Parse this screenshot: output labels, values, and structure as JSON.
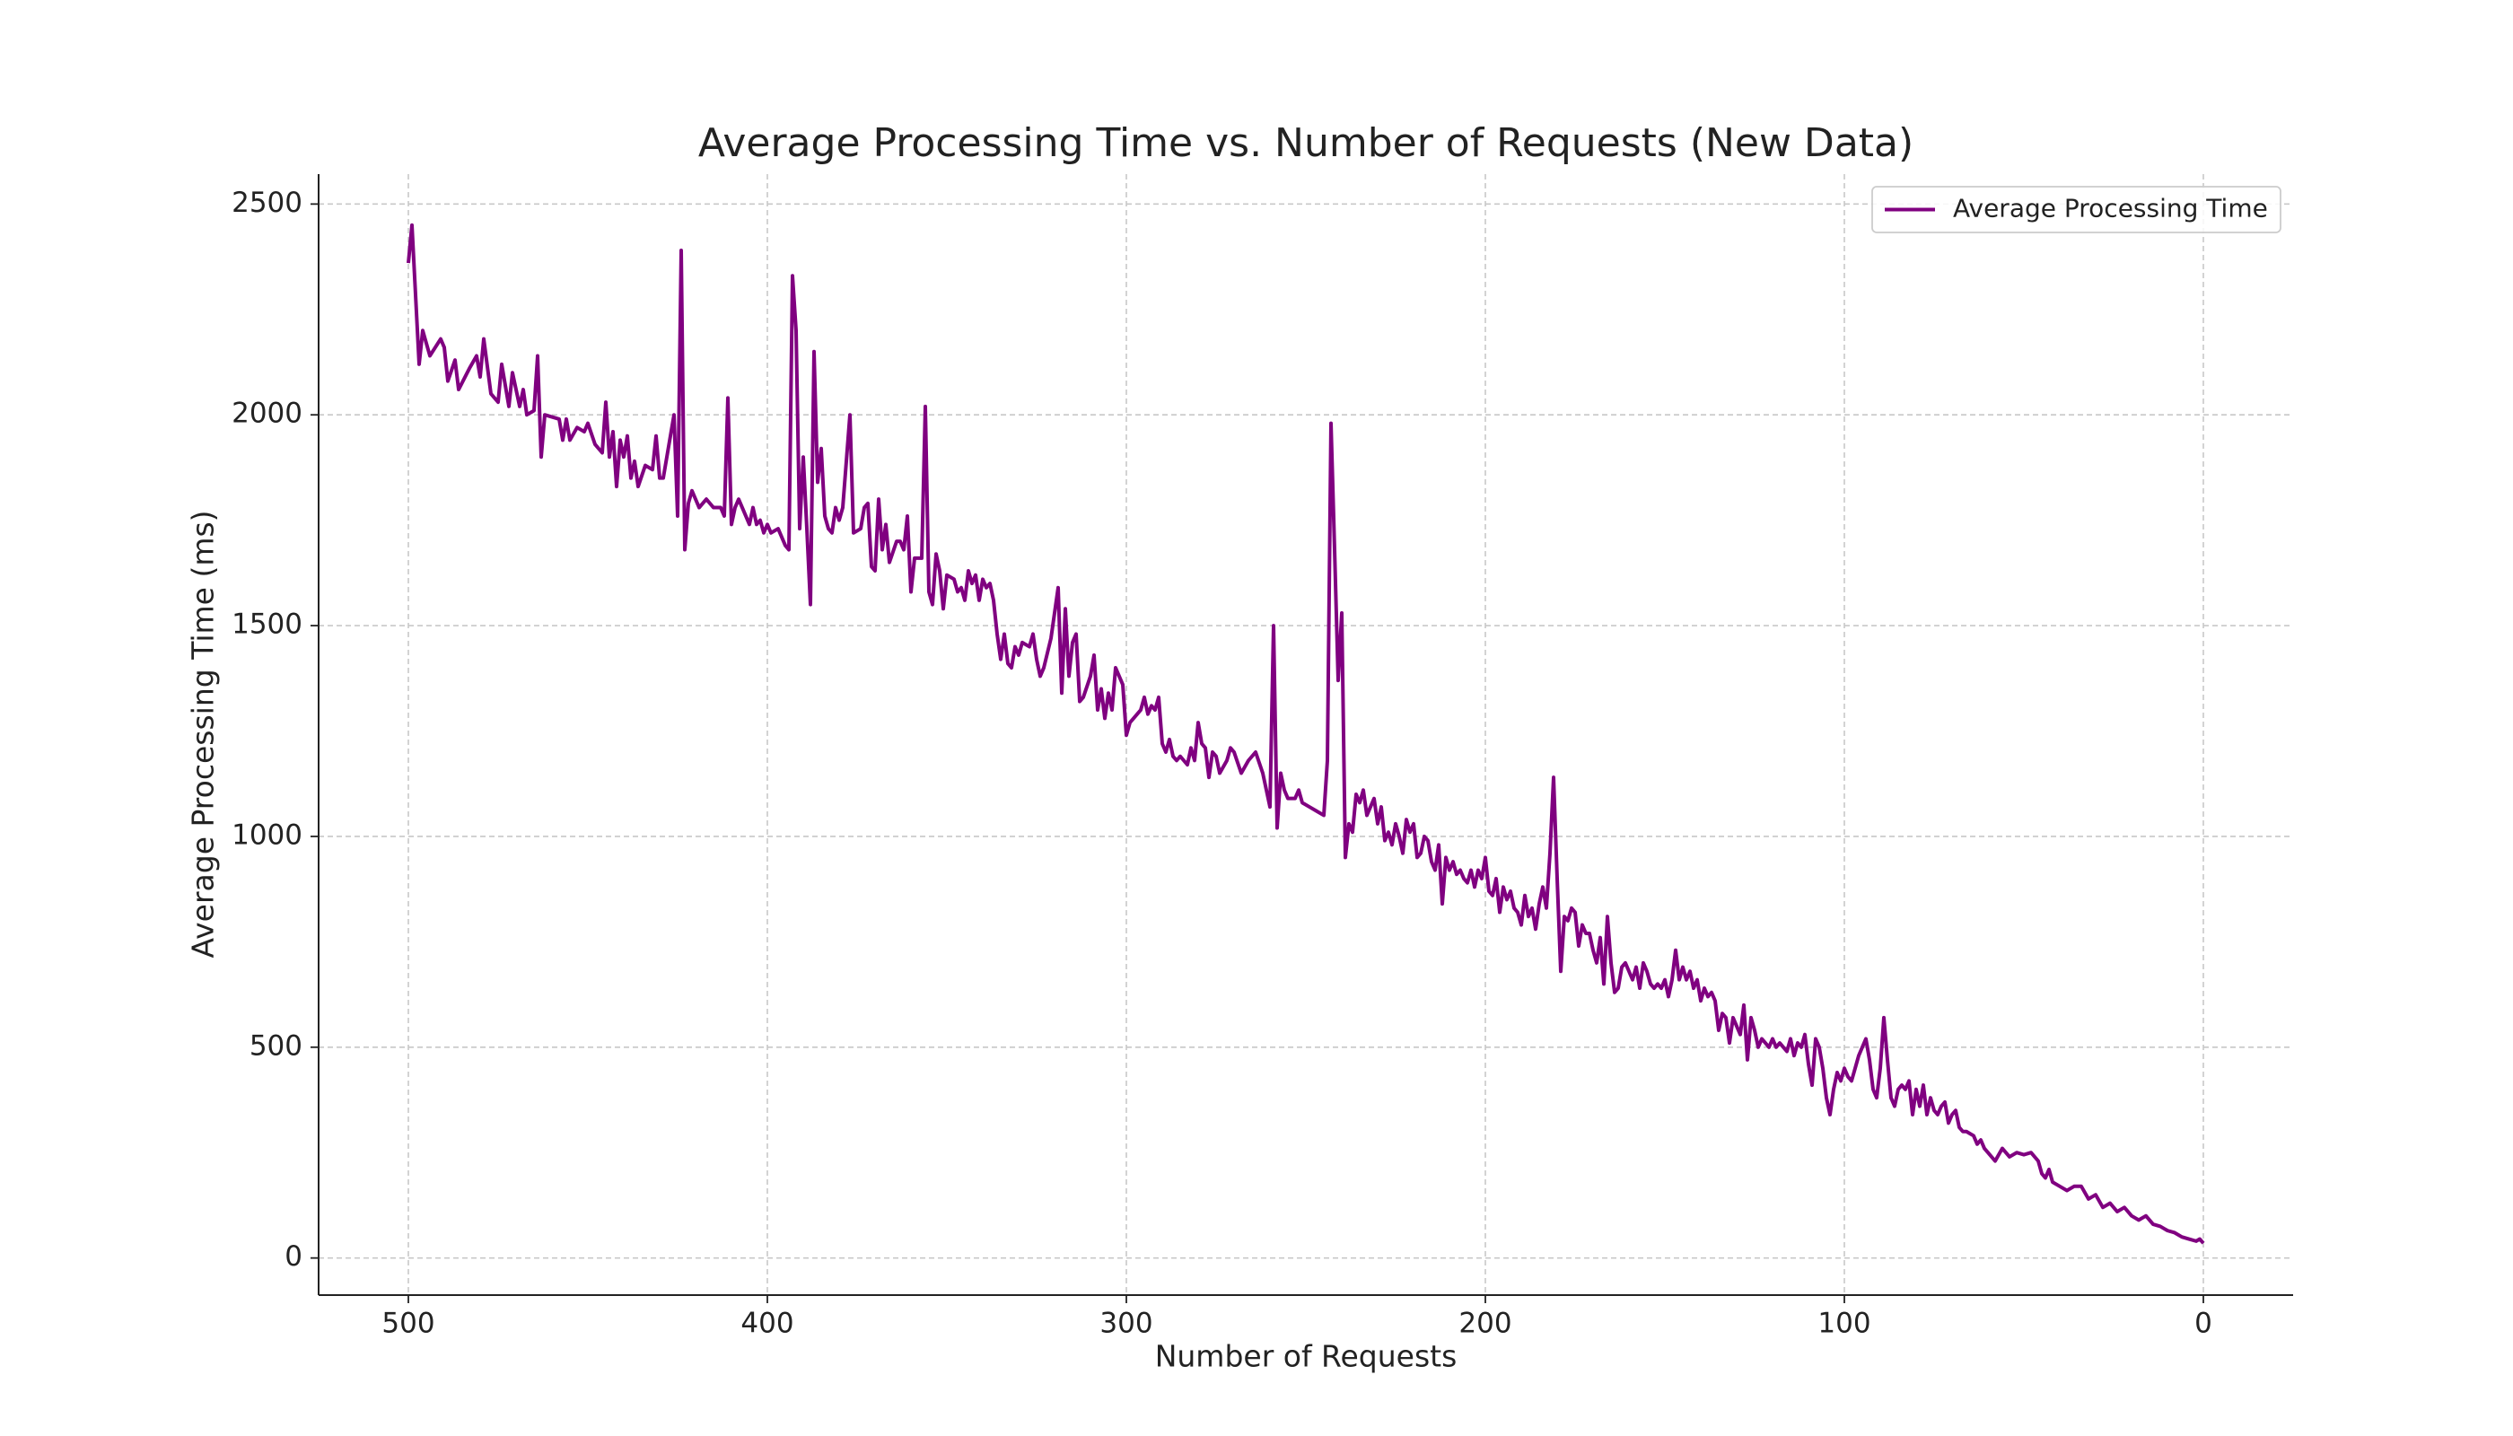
{
  "chart_data": {
    "type": "line",
    "title": "Average Processing Time vs. Number of Requests (New Data)",
    "x_label": "Number of Requests",
    "y_label": "Average Processing Time (ms)",
    "xlim": [
      525,
      -25
    ],
    "xticks": [
      500,
      400,
      300,
      200,
      100,
      0
    ],
    "ylim": [
      -88,
      2571
    ],
    "yticks": [
      0,
      500,
      1000,
      1500,
      2000,
      2500
    ],
    "grid": true,
    "legend": "upper right",
    "x": [
      500,
      499,
      497,
      496,
      494,
      491,
      490,
      489,
      487,
      486,
      483,
      481,
      480,
      479,
      477,
      475,
      474,
      472,
      471,
      469,
      468,
      467,
      465,
      464,
      463,
      462,
      458,
      457,
      456,
      455,
      453,
      451,
      450,
      448,
      446,
      445,
      444,
      443,
      442,
      441,
      440,
      439,
      438,
      437,
      436,
      434,
      432,
      431,
      430,
      429,
      426,
      425,
      424,
      423,
      422,
      421,
      420,
      419,
      417,
      415,
      413,
      412,
      411,
      410,
      409,
      408,
      406,
      405,
      404,
      403,
      402,
      401,
      400,
      399,
      397,
      395,
      394,
      393,
      392,
      391,
      390,
      389,
      388,
      387,
      386,
      385,
      384,
      383,
      382,
      381,
      380,
      379,
      377,
      376,
      374,
      373,
      372,
      371,
      370,
      369,
      368,
      367,
      366,
      364,
      363,
      362,
      361,
      360,
      359,
      357,
      356,
      355,
      354,
      353,
      352,
      351,
      350,
      348,
      347,
      346,
      345,
      344,
      343,
      342,
      341,
      340,
      339,
      338,
      337,
      336,
      335,
      334,
      333,
      332,
      331,
      330,
      329,
      327,
      326,
      325,
      324,
      323,
      321,
      319,
      318,
      317,
      316,
      315,
      314,
      313,
      312,
      310,
      309,
      308,
      307,
      306,
      305,
      304,
      303,
      302,
      301,
      300,
      299,
      298,
      296,
      295,
      294,
      293,
      292,
      291,
      290,
      289,
      288,
      287,
      286,
      285,
      284,
      283,
      282,
      281,
      280,
      279,
      278,
      277,
      276,
      275,
      274,
      272,
      271,
      270,
      268,
      266,
      264,
      262,
      260,
      259,
      258,
      257,
      256,
      255,
      253,
      252,
      251,
      249,
      247,
      245,
      244,
      243,
      242,
      241,
      240,
      239,
      238,
      237,
      236,
      235,
      234,
      233,
      232,
      231,
      230,
      229,
      228,
      227,
      226,
      225,
      224,
      223,
      222,
      221,
      220,
      219,
      218,
      217,
      216,
      215,
      214,
      213,
      212,
      211,
      210,
      209,
      208,
      207,
      206,
      205,
      204,
      203,
      202,
      201,
      200,
      199,
      198,
      197,
      196,
      195,
      194,
      193,
      192,
      191,
      190,
      189,
      188,
      187,
      186,
      185,
      184,
      183,
      182,
      181,
      180,
      179,
      178,
      177,
      176,
      175,
      174,
      173,
      172,
      171,
      170,
      169,
      168,
      167,
      166,
      165,
      164,
      163,
      162,
      161,
      160,
      159,
      158,
      157,
      156,
      155,
      154,
      153,
      152,
      151,
      150,
      149,
      148,
      147,
      146,
      145,
      144,
      143,
      142,
      141,
      140,
      139,
      138,
      137,
      136,
      135,
      134,
      133,
      132,
      131,
      130,
      129,
      128,
      127,
      126,
      125,
      124,
      123,
      122,
      121,
      120,
      119,
      118,
      117,
      116,
      115,
      114,
      113,
      112,
      111,
      110,
      109,
      108,
      107,
      106,
      105,
      104,
      103,
      102,
      101,
      100,
      99,
      98,
      97,
      96,
      95,
      94,
      93,
      92,
      91,
      90,
      89,
      88,
      87,
      86,
      85,
      84,
      83,
      82,
      81,
      80,
      79,
      78,
      77,
      76,
      75,
      74,
      73,
      72,
      71,
      70,
      69,
      68,
      67,
      66,
      65,
      64,
      63,
      62,
      61,
      60,
      58,
      56,
      54,
      52,
      50,
      48,
      46,
      45,
      44,
      43,
      42,
      40,
      38,
      36,
      34,
      32,
      30,
      28,
      26,
      24,
      22,
      20,
      18,
      16,
      14,
      12,
      10,
      8,
      6,
      4,
      2,
      1,
      0
    ],
    "series": [
      {
        "name": "Average Processing Time",
        "color": "#800080",
        "values": [
          2360,
          2450,
          2120,
          2200,
          2140,
          2180,
          2160,
          2080,
          2130,
          2060,
          2110,
          2140,
          2090,
          2180,
          2050,
          2030,
          2120,
          2020,
          2100,
          2020,
          2060,
          2000,
          2010,
          2140,
          1900,
          2000,
          1990,
          1940,
          1990,
          1940,
          1970,
          1960,
          1980,
          1930,
          1910,
          2030,
          1900,
          1960,
          1830,
          1940,
          1900,
          1950,
          1850,
          1890,
          1830,
          1880,
          1870,
          1950,
          1850,
          1850,
          2000,
          1760,
          2390,
          1680,
          1790,
          1820,
          1800,
          1780,
          1800,
          1780,
          1780,
          1760,
          2040,
          1740,
          1780,
          1800,
          1760,
          1740,
          1780,
          1740,
          1750,
          1720,
          1740,
          1720,
          1730,
          1690,
          1680,
          2330,
          2200,
          1730,
          1900,
          1730,
          1550,
          2150,
          1840,
          1920,
          1760,
          1730,
          1720,
          1780,
          1750,
          1780,
          2000,
          1720,
          1730,
          1780,
          1790,
          1640,
          1630,
          1800,
          1680,
          1740,
          1650,
          1700,
          1700,
          1680,
          1760,
          1580,
          1660,
          1660,
          2020,
          1580,
          1550,
          1670,
          1630,
          1540,
          1620,
          1610,
          1580,
          1590,
          1560,
          1630,
          1600,
          1620,
          1560,
          1610,
          1590,
          1600,
          1560,
          1480,
          1420,
          1480,
          1410,
          1400,
          1450,
          1430,
          1460,
          1450,
          1480,
          1420,
          1380,
          1400,
          1470,
          1590,
          1340,
          1540,
          1380,
          1460,
          1480,
          1320,
          1330,
          1380,
          1430,
          1300,
          1350,
          1280,
          1340,
          1300,
          1400,
          1380,
          1360,
          1240,
          1270,
          1280,
          1300,
          1330,
          1290,
          1310,
          1300,
          1330,
          1220,
          1200,
          1230,
          1190,
          1180,
          1190,
          1180,
          1170,
          1210,
          1180,
          1270,
          1220,
          1210,
          1140,
          1200,
          1190,
          1150,
          1180,
          1210,
          1200,
          1150,
          1180,
          1200,
          1150,
          1070,
          1500,
          1020,
          1150,
          1110,
          1090,
          1090,
          1110,
          1080,
          1070,
          1060,
          1050,
          1180,
          1980,
          1680,
          1370,
          1530,
          950,
          1030,
          1010,
          1100,
          1080,
          1110,
          1050,
          1070,
          1090,
          1030,
          1070,
          990,
          1010,
          980,
          1030,
          1000,
          960,
          1040,
          1010,
          1030,
          950,
          960,
          1000,
          990,
          940,
          920,
          980,
          840,
          950,
          920,
          940,
          910,
          920,
          900,
          890,
          920,
          880,
          920,
          900,
          950,
          870,
          860,
          900,
          820,
          880,
          850,
          870,
          830,
          820,
          790,
          860,
          810,
          830,
          780,
          840,
          880,
          830,
          960,
          1140,
          900,
          680,
          810,
          800,
          830,
          820,
          740,
          790,
          770,
          770,
          730,
          700,
          760,
          650,
          810,
          700,
          630,
          640,
          690,
          700,
          680,
          660,
          690,
          640,
          700,
          680,
          650,
          640,
          650,
          640,
          660,
          620,
          660,
          730,
          660,
          690,
          660,
          680,
          640,
          660,
          610,
          640,
          620,
          630,
          610,
          540,
          580,
          570,
          510,
          570,
          550,
          530,
          600,
          470,
          570,
          540,
          500,
          520,
          510,
          500,
          520,
          500,
          510,
          500,
          490,
          520,
          480,
          510,
          500,
          530,
          460,
          410,
          520,
          500,
          450,
          380,
          340,
          400,
          440,
          420,
          450,
          430,
          420,
          450,
          480,
          500,
          520,
          470,
          400,
          380,
          450,
          570,
          470,
          380,
          360,
          400,
          410,
          400,
          420,
          340,
          400,
          360,
          410,
          340,
          380,
          350,
          340,
          360,
          370,
          320,
          340,
          350,
          310,
          300,
          300,
          295,
          290,
          270,
          280,
          260,
          250,
          230,
          260,
          240,
          250,
          245,
          250,
          230,
          200,
          190,
          210,
          180,
          170,
          160,
          170,
          170,
          140,
          150,
          120,
          130,
          110,
          120,
          100,
          90,
          100,
          80,
          75,
          65,
          60,
          50,
          45,
          40,
          45,
          35
        ]
      }
    ]
  }
}
